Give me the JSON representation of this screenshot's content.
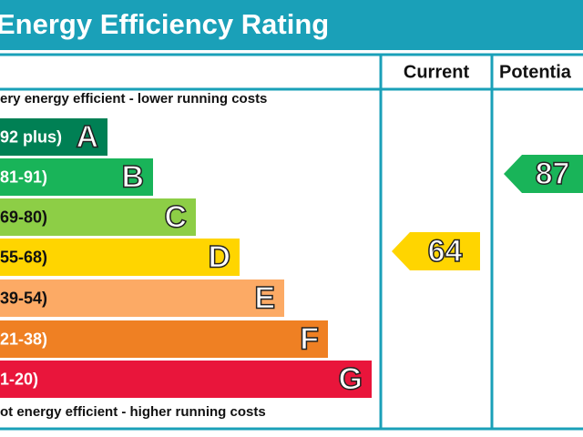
{
  "title": "Energy Efficiency Rating",
  "headers": [
    "Current",
    "Potentia"
  ],
  "top_note": "ery energy efficient - lower running costs",
  "bottom_note": "ot energy efficient - higher running costs",
  "bands": [
    {
      "range": "92 plus)",
      "letter": "A",
      "color": "#008054"
    },
    {
      "range": "81-91)",
      "letter": "B",
      "color": "#19b459"
    },
    {
      "range": "69-80)",
      "letter": "C",
      "color": "#8dce46"
    },
    {
      "range": "55-68)",
      "letter": "D",
      "color": "#ffd500"
    },
    {
      "range": "39-54)",
      "letter": "E",
      "color": "#fcaa65"
    },
    {
      "range": "21-38)",
      "letter": "F",
      "color": "#ef8023"
    },
    {
      "range": "1-20)",
      "letter": "G",
      "color": "#e9153b"
    }
  ],
  "current": {
    "value": 64,
    "color": "#ffd500"
  },
  "potential": {
    "value": 87,
    "color": "#19b459"
  }
}
